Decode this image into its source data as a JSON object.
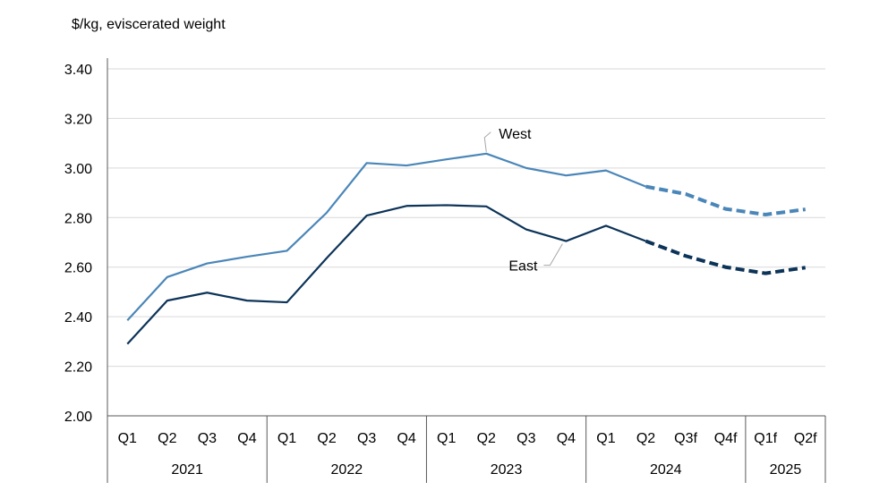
{
  "chart_data": {
    "type": "line",
    "ylabel": "$/kg, eviscerated weight",
    "ylim": [
      2.0,
      3.4
    ],
    "yticks": [
      "2.00",
      "2.20",
      "2.40",
      "2.60",
      "2.80",
      "3.00",
      "3.20",
      "3.40"
    ],
    "categories": [
      "Q1",
      "Q2",
      "Q3",
      "Q4",
      "Q1",
      "Q2",
      "Q3",
      "Q4",
      "Q1",
      "Q2",
      "Q3",
      "Q4",
      "Q1",
      "Q2",
      "Q3f",
      "Q4f",
      "Q1f",
      "Q2f"
    ],
    "years": [
      {
        "label": "2021",
        "count": 4
      },
      {
        "label": "2022",
        "count": 4
      },
      {
        "label": "2023",
        "count": 4
      },
      {
        "label": "2024",
        "count": 4
      },
      {
        "label": "2025",
        "count": 2
      }
    ],
    "forecast_start_index": 13,
    "grid": true,
    "series": [
      {
        "name": "West",
        "color": "#4a86b8",
        "values": [
          2.385,
          2.56,
          2.615,
          2.642,
          2.666,
          2.82,
          3.02,
          3.01,
          3.035,
          3.058,
          3.0,
          2.97,
          2.99,
          2.925,
          2.895,
          2.835,
          2.812,
          2.833
        ]
      },
      {
        "name": "East",
        "color": "#0c3358",
        "values": [
          2.29,
          2.465,
          2.497,
          2.465,
          2.458,
          2.637,
          2.808,
          2.847,
          2.85,
          2.845,
          2.752,
          2.705,
          2.767,
          2.705,
          2.645,
          2.6,
          2.575,
          2.598
        ]
      }
    ]
  }
}
